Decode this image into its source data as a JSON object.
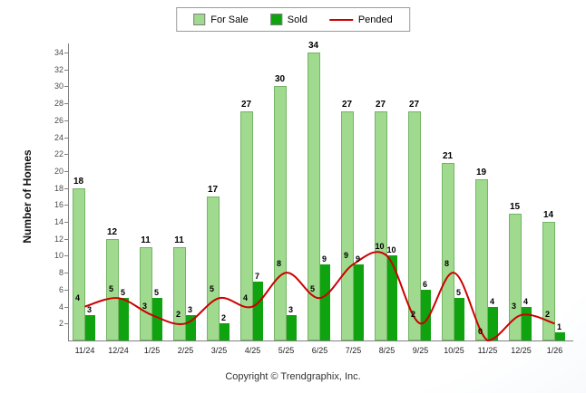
{
  "legend": {
    "for_sale": "For Sale",
    "sold": "Sold",
    "pended": "Pended"
  },
  "footer": "Copyright © Trendgraphix, Inc.",
  "colors": {
    "for_sale": "#9FDA8E",
    "sold": "#0FA30F",
    "pended": "#CC0000"
  },
  "chart_data": {
    "type": "bar",
    "title": "",
    "ylabel": "Number of Homes",
    "xlabel": "",
    "ylim": [
      0,
      34
    ],
    "ytick_step": 2,
    "yticks": [
      2,
      4,
      6,
      8,
      10,
      12,
      14,
      16,
      18,
      20,
      22,
      24,
      26,
      28,
      30,
      32,
      34
    ],
    "grid": false,
    "legend_position": "top-center",
    "categories": [
      "11/24",
      "12/24",
      "1/25",
      "2/25",
      "3/25",
      "4/25",
      "5/25",
      "6/25",
      "7/25",
      "8/25",
      "9/25",
      "10/25",
      "11/25",
      "12/25",
      "1/26"
    ],
    "series": [
      {
        "name": "For Sale",
        "type": "bar",
        "values": [
          18,
          12,
          11,
          11,
          17,
          27,
          30,
          34,
          27,
          27,
          27,
          21,
          19,
          15,
          14
        ]
      },
      {
        "name": "Sold",
        "type": "bar",
        "values": [
          3,
          5,
          5,
          3,
          2,
          7,
          3,
          9,
          9,
          10,
          6,
          5,
          4,
          4,
          1
        ]
      },
      {
        "name": "Pended",
        "type": "line",
        "values": [
          4,
          5,
          3,
          2,
          5,
          4,
          8,
          5,
          9,
          10,
          2,
          8,
          0,
          3,
          2
        ]
      }
    ]
  }
}
